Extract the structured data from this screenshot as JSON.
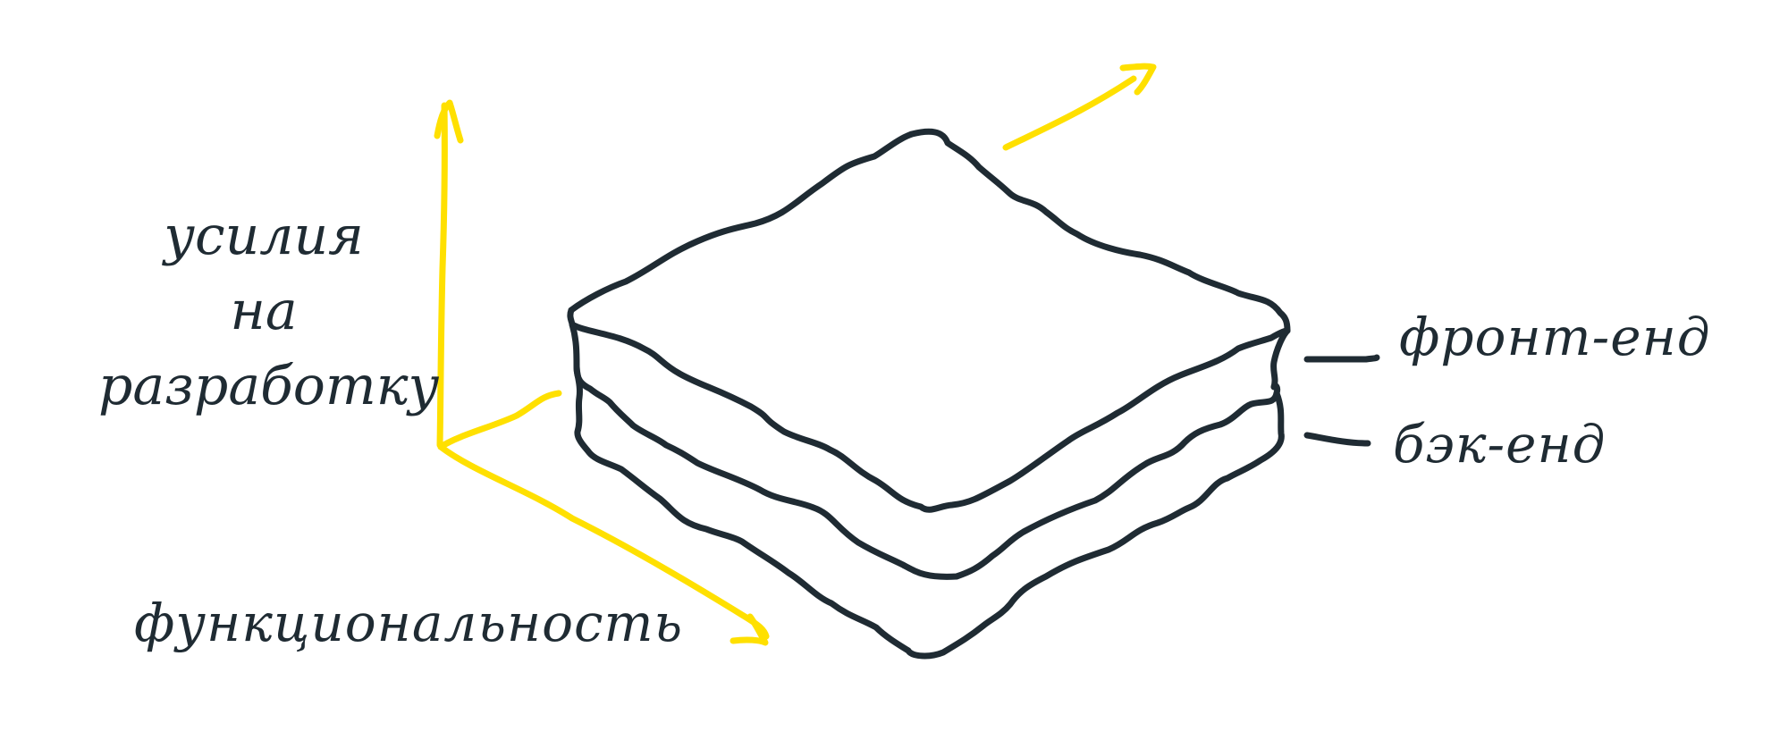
{
  "axes": {
    "vertical_label_lines": [
      "усилия",
      "на",
      "разработку"
    ],
    "horizontal_label": "функциональность",
    "color": "#ffe000"
  },
  "layers": {
    "top_label": "фронт-енд",
    "bottom_label": "бэк-енд"
  },
  "ink_color": "#1f2b33"
}
